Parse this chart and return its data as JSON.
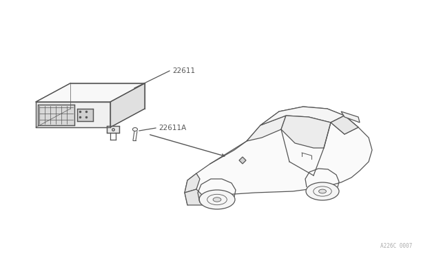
{
  "background_color": "#ffffff",
  "line_color": "#555555",
  "label_color": "#555555",
  "font_size_labels": 7.5,
  "font_size_watermark": 5.5,
  "watermark_text": "A226C 0007",
  "label_22611": "22611",
  "label_22611A": "22611A",
  "fig_width": 6.4,
  "fig_height": 3.72
}
